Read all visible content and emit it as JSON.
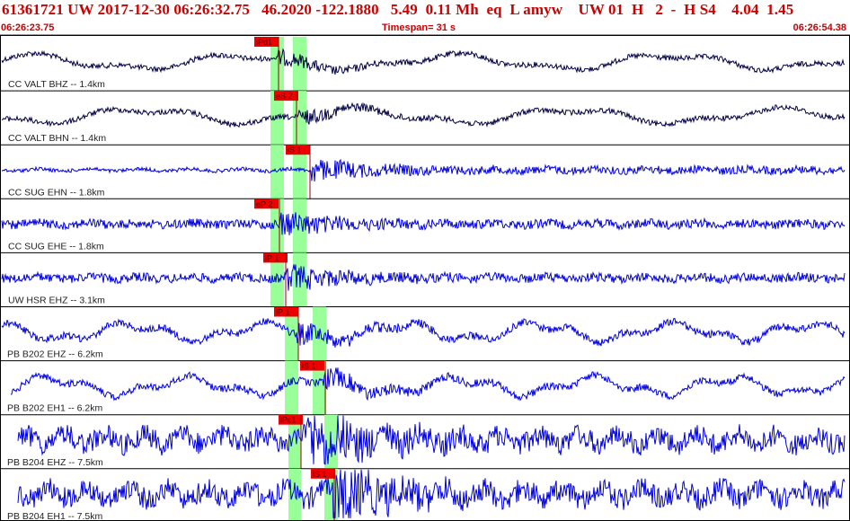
{
  "header": {
    "title": "61361721 UW 2017-12-30 06:26:32.75   46.2020 -122.1880   5.49  0.11 Mh  eq  L amyw    UW 01  H   2  -  H S4    4.04  1.45",
    "start_time": "06:26:23.75",
    "timespan": "Timespan=  31 s",
    "end_time": "06:26:54.38"
  },
  "colors": {
    "header_text": "#cc0000",
    "trace_first": "#000044",
    "trace_blue": "#0000dd",
    "pick_marker": "#ee0000",
    "pick_window": "#99ff99",
    "separator": "#000000"
  },
  "channels": [
    {
      "label": "CC VALT BHZ -- 1.4km",
      "pick": "iPd1",
      "style": "lowfreq-dark"
    },
    {
      "label": "CC VALT BHN -- 1.4km",
      "pick": "eS 2",
      "style": "lowfreq-dark"
    },
    {
      "label": "CC SUG EHN -- 1.8km",
      "pick": "iS 1",
      "style": "hf-blue"
    },
    {
      "label": "CC SUG EHE -- 1.8km",
      "pick": "eP 2",
      "style": "hf-blue"
    },
    {
      "label": "UW HSR EHZ -- 3.1km",
      "pick": "iP 1",
      "style": "hf-blue"
    },
    {
      "label": "PB B202 EHZ -- 6.2km",
      "pick": "iP 1",
      "style": "mixed-blue"
    },
    {
      "label": "PB B202 EH1 -- 6.2km",
      "pick": "iS 1",
      "style": "mixed-blue"
    },
    {
      "label": "PB B204 EHZ -- 7.5km",
      "pick": "iPc1",
      "style": "loud-blue"
    },
    {
      "label": "PB B204 EH1 -- 7.5km",
      "pick": "iS 1",
      "style": "loud-blue"
    }
  ]
}
